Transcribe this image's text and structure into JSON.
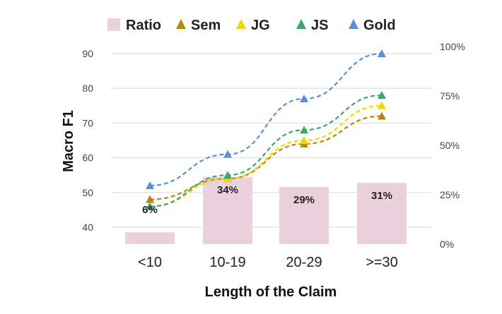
{
  "chart_data": {
    "type": "bar+line",
    "categories": [
      "<10",
      "10-19",
      "20-29",
      ">=30"
    ],
    "xlabel": "Length of the Claim",
    "ylabel": "Macro  F1",
    "ylim": [
      35,
      92
    ],
    "yticks": [
      40,
      50,
      60,
      70,
      80,
      90
    ],
    "y2lim": [
      0,
      100
    ],
    "y2ticks": [
      0,
      25,
      50,
      75,
      100
    ],
    "y2ticklabels": [
      "0%",
      "25%",
      "50%",
      "75%",
      "100%"
    ],
    "grid": true,
    "legend_position": "top",
    "bars": {
      "name": "Ratio",
      "axis": "right",
      "values": [
        6,
        34,
        29,
        31
      ],
      "labels": [
        "6%",
        "34%",
        "29%",
        "31%"
      ],
      "color": "#ead1dc"
    },
    "series": [
      {
        "name": "Sem",
        "values": [
          48,
          54,
          64,
          72
        ],
        "color": "#b8860b"
      },
      {
        "name": "JG",
        "values": [
          46,
          54,
          65,
          75
        ],
        "color": "#f2d600"
      },
      {
        "name": "JS",
        "values": [
          46,
          55,
          68,
          78
        ],
        "color": "#3aa76d"
      },
      {
        "name": "Gold",
        "values": [
          52,
          61,
          77,
          90
        ],
        "color": "#5b8ed6"
      }
    ]
  }
}
